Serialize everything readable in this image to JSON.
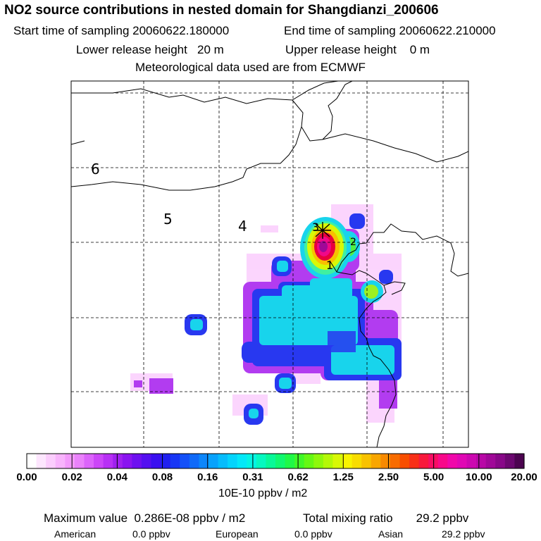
{
  "header": {
    "title": "NO2 source contributions in nested domain for Shangdianzi_200606",
    "start_label": "Start time of sampling 20060622.180000",
    "end_label": "End time of sampling 20060622.210000",
    "lower_label": "Lower release height   20 m",
    "upper_label": "Upper release height    0 m",
    "met_label": "Meteorological data used are from ECMWF"
  },
  "map": {
    "numbers": [
      "6",
      "5",
      "4",
      "3",
      "2",
      "1"
    ],
    "colors": {
      "red": "#e8003c",
      "cyan": "#18d4ec",
      "violet": "#b23cf0",
      "blue": "#2838f0"
    }
  },
  "colorbar": {
    "labels": [
      "0.00",
      "0.02",
      "0.04",
      "0.08",
      "0.16",
      "0.31",
      "0.62",
      "1.25",
      "2.50",
      "5.00",
      "10.00",
      "20.00"
    ],
    "colors": [
      "#ffffff",
      "#fde6fe",
      "#fbcdfd",
      "#f8b4fc",
      "#f39afb",
      "#ea82fb",
      "#dc64fb",
      "#cc46f8",
      "#b830f5",
      "#a020f0",
      "#8a14f0",
      "#6e10f0",
      "#5410f0",
      "#3a10f0",
      "#2020f0",
      "#1836f5",
      "#1450f8",
      "#106af8",
      "#0c86fa",
      "#08a2fc",
      "#06bcfc",
      "#04d4fc",
      "#04e8f8",
      "#04f4e4",
      "#06f8c0",
      "#08f898",
      "#10f870",
      "#20f848",
      "#40f828",
      "#66f814",
      "#8ef80c",
      "#b4f808",
      "#d8f806",
      "#f8f400",
      "#f8dc00",
      "#f8c200",
      "#f8a600",
      "#f88a00",
      "#f86c00",
      "#f84e00",
      "#f83018",
      "#f8183c",
      "#f80c64",
      "#f8088a",
      "#f008aa",
      "#e008b4",
      "#cc08b0",
      "#b808a6",
      "#a00898",
      "#880888",
      "#6c0870",
      "#4c0450"
    ],
    "units": "10E-10 ppbv / m2"
  },
  "footer": {
    "max_label": "Maximum value  0.286E-08 ppbv / m2",
    "total_label": "Total mixing ratio       29.2 ppbv",
    "american_label": "American",
    "american_value": "0.0 ppbv",
    "european_label": "European",
    "european_value": "0.0 ppbv",
    "asian_label": "Asian",
    "asian_value": "29.2 ppbv"
  }
}
